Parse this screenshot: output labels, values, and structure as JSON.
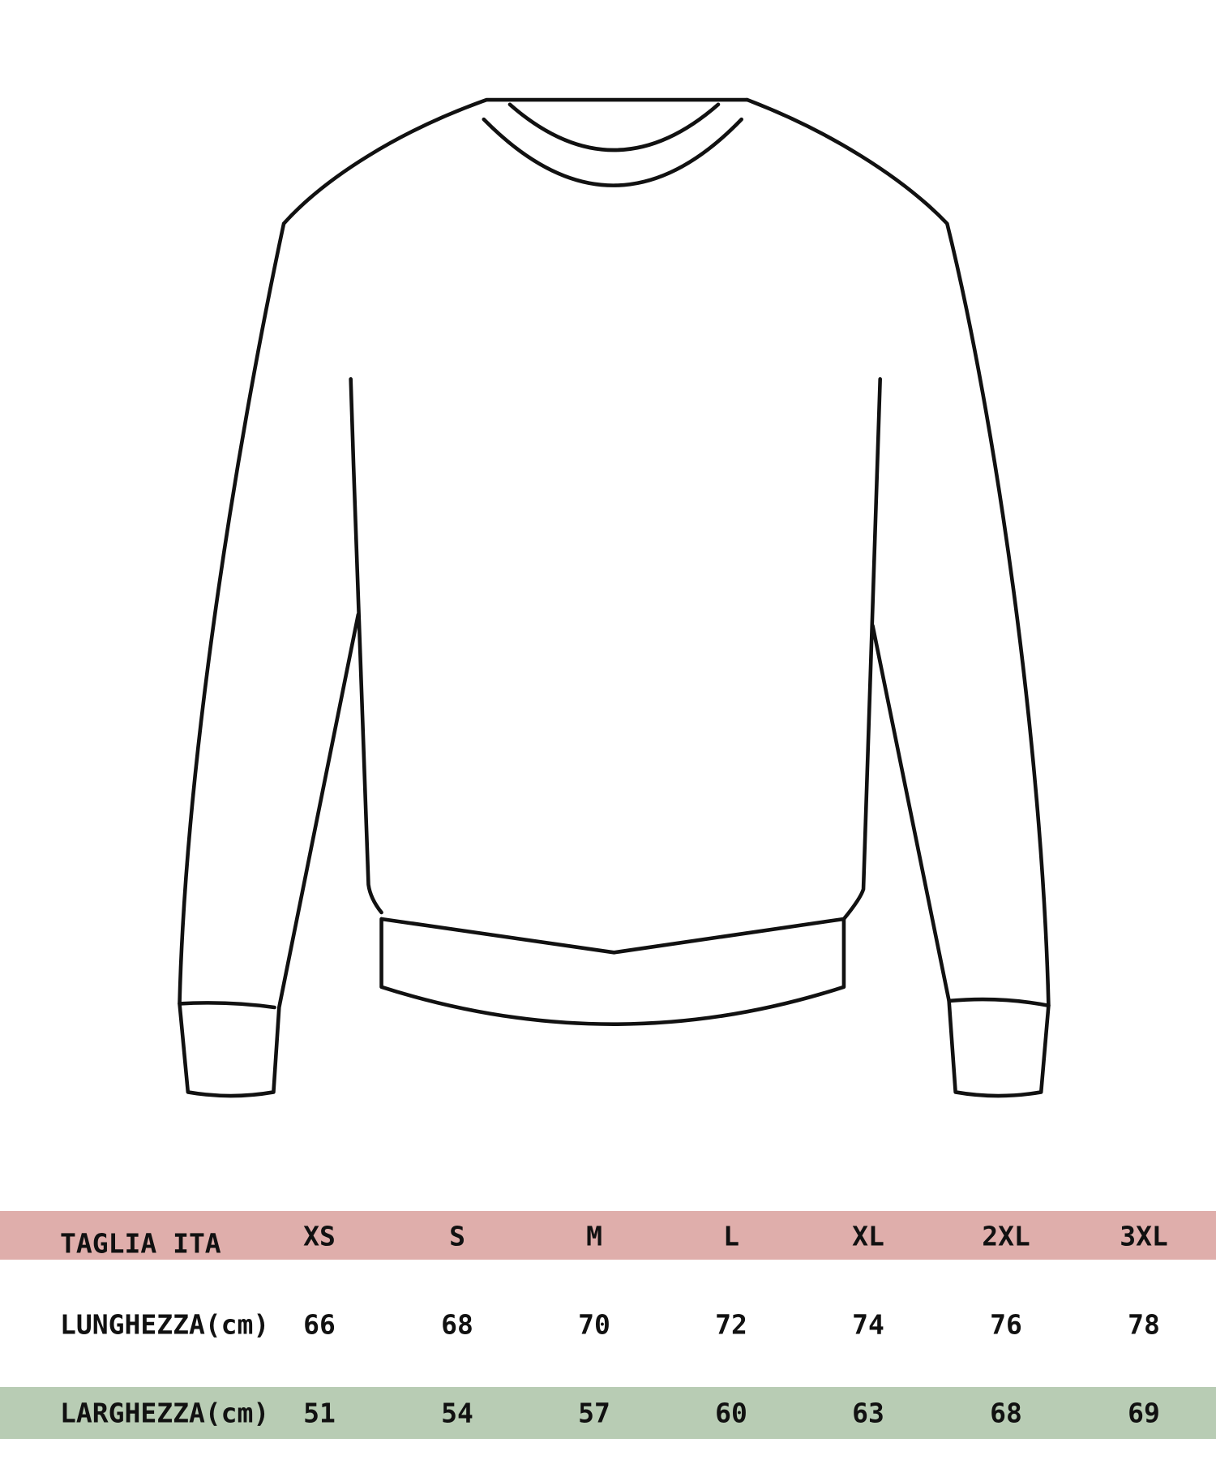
{
  "colors": {
    "size_row": "#dfaeab",
    "width_row": "#b8ccb4",
    "outline": "#111111"
  },
  "illustration": "sweater-outline",
  "table": {
    "header": {
      "label": "TAGLIA ITA",
      "values": [
        "XS",
        "S",
        "M",
        "L",
        "XL",
        "2XL",
        "3XL"
      ]
    },
    "rows": [
      {
        "label": "LUNGHEZZA(cm)",
        "values": [
          "66",
          "68",
          "70",
          "72",
          "74",
          "76",
          "78"
        ]
      },
      {
        "label": "LARGHEZZA(cm)",
        "values": [
          "51",
          "54",
          "57",
          "60",
          "63",
          "68",
          "69"
        ]
      }
    ]
  }
}
